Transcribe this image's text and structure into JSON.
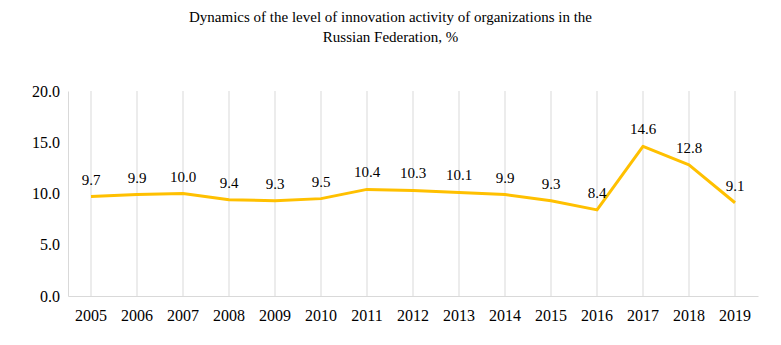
{
  "chart_data": {
    "type": "line",
    "title": [
      "Dynamics  of  the level of innovation  activity  of organizations  in the",
      "Russian Federation, %"
    ],
    "categories": [
      "2005",
      "2006",
      "2007",
      "2008",
      "2009",
      "2010",
      "2011",
      "2012",
      "2013",
      "2014",
      "2015",
      "2016",
      "2017",
      "2018",
      "2019"
    ],
    "values": [
      9.7,
      9.9,
      10.0,
      9.4,
      9.3,
      9.5,
      10.4,
      10.3,
      10.1,
      9.9,
      9.3,
      8.4,
      14.6,
      12.8,
      9.1
    ],
    "value_labels": [
      "9.7",
      "9.9",
      "10.0",
      "9.4",
      "9.3",
      "9.5",
      "10.4",
      "10.3",
      "10.1",
      "9.9",
      "9.3",
      "8.4",
      "14.6",
      "12.8",
      "9.1"
    ],
    "color": "#FFC000",
    "ylim": [
      0,
      20
    ],
    "yticks": [
      {
        "value": 0,
        "label": "0.0"
      },
      {
        "value": 5,
        "label": "5.0"
      },
      {
        "value": 10,
        "label": "10.0"
      },
      {
        "value": 15,
        "label": "15.0"
      },
      {
        "value": 20,
        "label": "20.0"
      }
    ],
    "grid": true,
    "data_labels": true
  }
}
